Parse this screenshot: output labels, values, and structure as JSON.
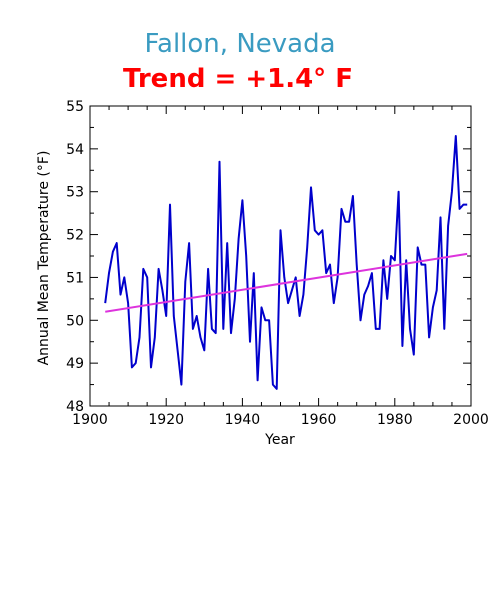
{
  "chart_data": {
    "type": "line",
    "title": "Fallon, Nevada",
    "subtitle": "Trend = +1.4° F",
    "xlabel": "Year",
    "ylabel": "Annual Mean Temperature (°F)",
    "xlim": [
      1900,
      2000
    ],
    "ylim": [
      48,
      55
    ],
    "x_ticks": [
      1900,
      1920,
      1940,
      1960,
      1980,
      2000
    ],
    "y_ticks": [
      48,
      49,
      50,
      51,
      52,
      53,
      54,
      55
    ],
    "grid": false,
    "colors": {
      "title": "#3a9bc1",
      "subtitle": "#ff0000",
      "series": "#0000cc",
      "trend": "#dd33dd",
      "axes": "#000000"
    },
    "series": [
      {
        "x": [
          1904,
          1905,
          1906,
          1907,
          1908,
          1909,
          1910,
          1911,
          1912,
          1913,
          1914,
          1915,
          1916,
          1917,
          1918,
          1919,
          1920,
          1921,
          1922,
          1923,
          1924,
          1925,
          1926,
          1927,
          1928,
          1929,
          1930,
          1931,
          1932,
          1933,
          1934,
          1935,
          1936,
          1937,
          1938,
          1939,
          1940,
          1941,
          1942,
          1943,
          1944,
          1945,
          1946,
          1947,
          1948,
          1949,
          1950,
          1951,
          1952,
          1953,
          1954,
          1955,
          1956,
          1957,
          1958,
          1959,
          1960,
          1961,
          1962,
          1963,
          1964,
          1965,
          1966,
          1967,
          1968,
          1969,
          1970,
          1971,
          1972,
          1973,
          1974,
          1975,
          1976,
          1977,
          1978,
          1979,
          1980,
          1981,
          1982,
          1983,
          1984,
          1985,
          1986,
          1987,
          1988,
          1989,
          1990,
          1991,
          1992,
          1993,
          1994,
          1995,
          1996,
          1997,
          1998,
          1999
        ],
        "values": [
          50.4,
          51.1,
          51.6,
          51.8,
          50.6,
          51.0,
          50.4,
          48.9,
          49.0,
          49.6,
          51.2,
          51.0,
          48.9,
          49.6,
          51.2,
          50.7,
          50.1,
          52.7,
          50.1,
          49.3,
          48.5,
          50.9,
          51.8,
          49.8,
          50.1,
          49.6,
          49.3,
          51.2,
          49.8,
          49.7,
          53.7,
          49.8,
          51.8,
          49.7,
          50.5,
          51.9,
          52.8,
          51.5,
          49.5,
          51.1,
          48.6,
          50.3,
          50.0,
          50.0,
          48.5,
          48.4,
          52.1,
          51.0,
          50.4,
          50.7,
          51.0,
          50.1,
          50.6,
          51.7,
          53.1,
          52.1,
          52.0,
          52.1,
          51.1,
          51.3,
          50.4,
          51.0,
          52.6,
          52.3,
          52.3,
          52.9,
          51.3,
          50.0,
          50.6,
          50.8,
          51.1,
          49.8,
          49.8,
          51.4,
          50.5,
          51.5,
          51.4,
          53.0,
          49.4,
          51.4,
          49.8,
          49.2,
          51.7,
          51.3,
          51.3,
          49.6,
          50.3,
          50.7,
          52.4,
          49.8,
          52.2,
          53.0,
          54.3,
          52.6,
          52.7,
          52.7
        ]
      }
    ],
    "trend_line": {
      "x": [
        1904,
        1999
      ],
      "values": [
        50.2,
        51.55
      ]
    }
  }
}
